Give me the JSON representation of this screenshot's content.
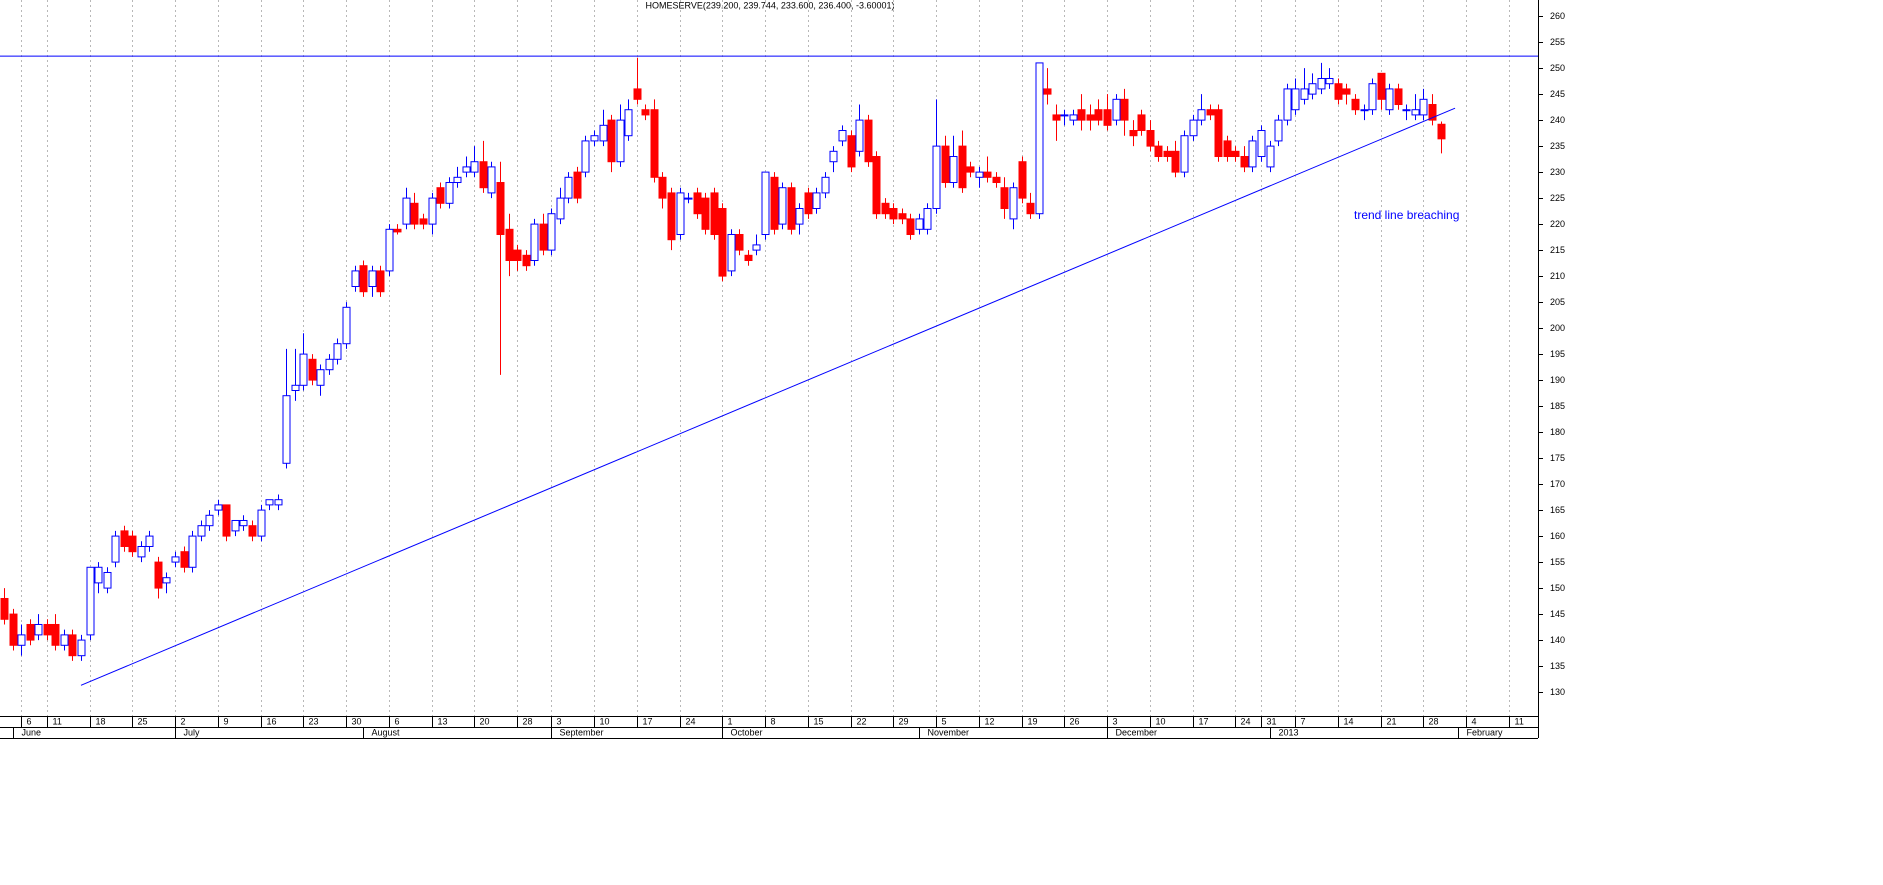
{
  "chart_data": {
    "type": "candlestick",
    "title": "HOMESERVE(239.200, 239.744, 233.600, 236.400, -3.60001)",
    "annotation": "trend line breaching",
    "up_color": "#0000ff",
    "down_color": "#ff0000",
    "line_color": "#0000ff",
    "grid": true,
    "ylim": [
      125.4,
      263.1
    ],
    "yticks": [
      130,
      135,
      140,
      145,
      150,
      155,
      160,
      165,
      170,
      175,
      180,
      185,
      190,
      195,
      200,
      205,
      210,
      215,
      220,
      225,
      230,
      235,
      240,
      245,
      250,
      255,
      260
    ],
    "xlim": [
      -0.47,
      179.4
    ],
    "xticks": [
      {
        "value": 2,
        "label": "6"
      },
      {
        "value": 5,
        "label": "11"
      },
      {
        "value": 10,
        "label": "18"
      },
      {
        "value": 15,
        "label": "25"
      },
      {
        "value": 20,
        "label": "2"
      },
      {
        "value": 25,
        "label": "9"
      },
      {
        "value": 30,
        "label": "16"
      },
      {
        "value": 35,
        "label": "23"
      },
      {
        "value": 40,
        "label": "30"
      },
      {
        "value": 45,
        "label": "6"
      },
      {
        "value": 50,
        "label": "13"
      },
      {
        "value": 55,
        "label": "20"
      },
      {
        "value": 60,
        "label": "28"
      },
      {
        "value": 64,
        "label": "3"
      },
      {
        "value": 69,
        "label": "10"
      },
      {
        "value": 74,
        "label": "17"
      },
      {
        "value": 79,
        "label": "24"
      },
      {
        "value": 84,
        "label": "1"
      },
      {
        "value": 89,
        "label": "8"
      },
      {
        "value": 94,
        "label": "15"
      },
      {
        "value": 99,
        "label": "22"
      },
      {
        "value": 104,
        "label": "29"
      },
      {
        "value": 109,
        "label": "5"
      },
      {
        "value": 114,
        "label": "12"
      },
      {
        "value": 119,
        "label": "19"
      },
      {
        "value": 124,
        "label": "26"
      },
      {
        "value": 129,
        "label": "3"
      },
      {
        "value": 134,
        "label": "10"
      },
      {
        "value": 139,
        "label": "17"
      },
      {
        "value": 144,
        "label": "24"
      },
      {
        "value": 147,
        "label": "31"
      },
      {
        "value": 151,
        "label": "7"
      },
      {
        "value": 156,
        "label": "14"
      },
      {
        "value": 161,
        "label": "21"
      },
      {
        "value": 166,
        "label": "28"
      },
      {
        "value": 171,
        "label": "4"
      },
      {
        "value": 176,
        "label": "11"
      }
    ],
    "month_ticks": [
      {
        "value": 1,
        "label": "June"
      },
      {
        "value": 20,
        "label": "July"
      },
      {
        "value": 42,
        "label": "August"
      },
      {
        "value": 64,
        "label": "September"
      },
      {
        "value": 84,
        "label": "October"
      },
      {
        "value": 107,
        "label": "November"
      },
      {
        "value": 129,
        "label": "December"
      },
      {
        "value": 148,
        "label": "2013"
      },
      {
        "value": 170,
        "label": "February"
      }
    ],
    "resistance": 252.3,
    "trendline": {
      "x": [
        9,
        169.7
      ],
      "y": [
        131.3,
        242.3
      ]
    },
    "open": [
      148,
      145,
      139,
      143,
      141,
      143,
      143,
      139,
      141,
      137,
      141,
      151,
      150,
      155,
      161,
      160,
      156,
      158,
      155,
      151,
      155,
      157,
      154,
      160,
      162,
      165,
      166,
      161,
      162,
      162,
      160,
      166,
      166,
      174,
      188,
      189,
      194,
      189,
      192,
      194,
      197,
      208,
      212,
      208,
      211,
      211,
      219,
      220,
      224,
      221,
      220,
      227,
      224,
      228,
      230,
      230,
      232,
      226,
      228,
      219,
      215,
      214,
      213,
      220,
      215,
      221,
      225,
      230,
      230,
      236,
      236,
      240,
      232,
      237,
      246,
      242,
      242,
      229,
      226,
      218,
      225,
      226,
      225,
      226,
      223,
      211,
      218,
      214,
      215,
      218,
      229,
      220,
      227,
      220,
      226,
      223,
      226,
      232,
      236,
      237,
      234,
      240,
      233,
      224,
      223,
      222,
      221,
      219,
      219,
      223,
      235,
      228,
      235,
      231,
      229,
      230,
      229,
      227,
      221,
      232,
      224,
      222,
      246,
      241,
      241,
      240,
      242,
      241,
      242,
      242,
      240,
      244,
      238,
      241,
      238,
      235,
      234,
      234,
      230,
      237,
      240,
      242,
      242,
      236,
      234,
      233,
      231,
      233,
      231,
      236,
      240,
      242,
      244,
      245,
      246,
      247,
      247,
      246,
      244,
      242,
      242,
      249,
      242,
      246,
      242,
      241,
      241,
      243,
      239.2
    ],
    "high": [
      150,
      146,
      143,
      144,
      145,
      144,
      145,
      142,
      142,
      141,
      154,
      155,
      154,
      161,
      162,
      161,
      159,
      161,
      156,
      153,
      157,
      158,
      161,
      163,
      165,
      167,
      166,
      163,
      164,
      163,
      166,
      167,
      168,
      196,
      196,
      199,
      195,
      193,
      195,
      198,
      205,
      212,
      213,
      212,
      212,
      220,
      220,
      227,
      226,
      222,
      226,
      228,
      229,
      231,
      233,
      235,
      236,
      232,
      232,
      222,
      216,
      215,
      221,
      222,
      223,
      227,
      230,
      231,
      237,
      238,
      242,
      241,
      243,
      244,
      252,
      243,
      244,
      230,
      227,
      227,
      226,
      227,
      226,
      227,
      224,
      219,
      219,
      215,
      218,
      230,
      230,
      228,
      228,
      224,
      227,
      227,
      230,
      235,
      239,
      238,
      243,
      241,
      234,
      225,
      224,
      223,
      222,
      222,
      224,
      244,
      237,
      237,
      238,
      232,
      231,
      233,
      230,
      229,
      228,
      233,
      226,
      251,
      250,
      243,
      242,
      242,
      245,
      243,
      244,
      245,
      245,
      246,
      240,
      242,
      240,
      236,
      235,
      236,
      238,
      241,
      245,
      243,
      243,
      237,
      235,
      235,
      237,
      239,
      236,
      241,
      247,
      248,
      250,
      249,
      251,
      250,
      248,
      247,
      245,
      243,
      248,
      249,
      247,
      247,
      243,
      245,
      246,
      245,
      239.744
    ],
    "low": [
      143,
      138,
      137,
      139,
      140,
      140,
      138,
      138,
      136,
      136,
      140,
      149,
      149,
      154,
      157,
      156,
      155,
      157,
      148,
      149,
      154,
      153,
      153,
      159,
      161,
      164,
      159,
      160,
      161,
      159,
      159,
      165,
      165,
      173,
      186,
      188,
      189,
      187,
      191,
      193,
      196,
      207,
      206,
      206,
      206,
      210,
      218,
      219,
      219,
      219,
      218,
      223,
      223,
      227,
      229,
      229,
      226,
      225,
      191,
      210,
      211,
      211,
      212,
      214,
      214,
      220,
      224,
      224,
      229,
      235,
      235,
      230,
      231,
      236,
      243,
      240,
      228,
      223,
      215,
      217,
      224,
      221,
      218,
      217,
      209,
      210,
      214,
      212,
      214,
      217,
      218,
      219,
      218,
      218,
      221,
      222,
      225,
      230,
      235,
      230,
      233,
      231,
      221,
      221,
      220,
      220,
      217,
      218,
      218,
      222,
      227,
      227,
      226,
      229,
      227,
      228,
      227,
      221,
      219,
      224,
      221,
      221,
      243,
      236,
      239,
      239,
      238,
      238,
      239,
      238,
      239,
      237,
      235,
      237,
      234,
      232,
      232,
      229,
      229,
      236,
      239,
      240,
      232,
      232,
      232,
      230,
      230,
      232,
      230,
      235,
      239,
      241,
      243,
      244,
      245,
      246,
      243,
      243,
      241,
      240,
      241,
      242,
      241,
      242,
      240,
      240,
      240,
      239,
      233.6
    ],
    "close": [
      144,
      139,
      141,
      140,
      143,
      141,
      139,
      141,
      137,
      140,
      154,
      154,
      153,
      160,
      158,
      157,
      158,
      160,
      150,
      152,
      156,
      154,
      160,
      162,
      164,
      166,
      160,
      163,
      163,
      160,
      165,
      167,
      167,
      187,
      189,
      195,
      190,
      192,
      194,
      197,
      204,
      211,
      207,
      211,
      207,
      219,
      218.5,
      225,
      220,
      220,
      225,
      224,
      228,
      229,
      231,
      232,
      227,
      231,
      218,
      213,
      213,
      212,
      220,
      215,
      222,
      225,
      229,
      225,
      236,
      237,
      239,
      232,
      240,
      242,
      244,
      241,
      229,
      225,
      217,
      226,
      225,
      222,
      219,
      218,
      210,
      218,
      215,
      213,
      216,
      230,
      219,
      227,
      219,
      223,
      222,
      226,
      229,
      234,
      238,
      231,
      240,
      232,
      222,
      222,
      221,
      221,
      218,
      221,
      223,
      235,
      228,
      233,
      227,
      230,
      230,
      229,
      228,
      223,
      227,
      225,
      222,
      251,
      245,
      240,
      241,
      241,
      240,
      240,
      240,
      239,
      244,
      240,
      237,
      238,
      235,
      233,
      233,
      230,
      237,
      240,
      242,
      241,
      233,
      233,
      233,
      231,
      236,
      238,
      235,
      240,
      246,
      246,
      246,
      247,
      248,
      248,
      244,
      245,
      242,
      242,
      247,
      244,
      246,
      243,
      242,
      242,
      244,
      240,
      236.4
    ]
  }
}
